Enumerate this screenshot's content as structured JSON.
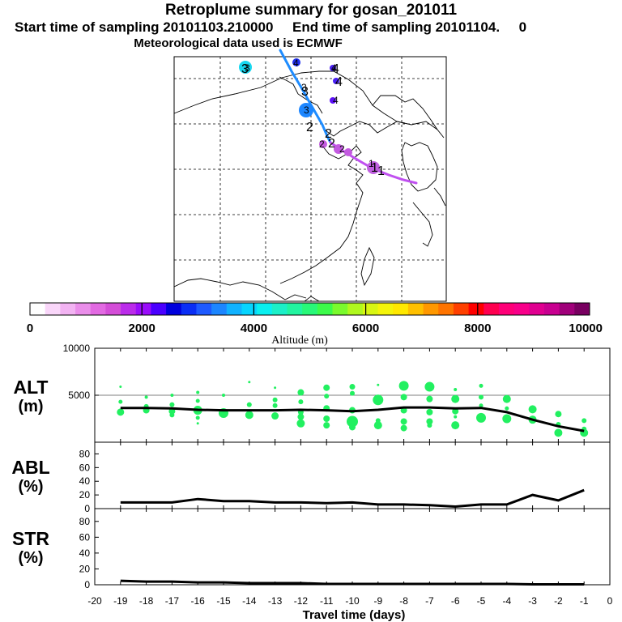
{
  "header": {
    "title": "Retroplume summary for gosan_201011",
    "sampling": "Start time of sampling 20101103.210000     End time of sampling 20101104.     0",
    "met": "Meteorological data used is ECMWF"
  },
  "map": {
    "trajectory_labels": [
      "1",
      "1",
      "2",
      "2",
      "2",
      "3",
      "3",
      "4",
      "4"
    ],
    "cluster_labels": [
      "1",
      "2",
      "2",
      "3",
      "3",
      "3",
      "4",
      "4",
      "4"
    ]
  },
  "colorbar": {
    "colors": [
      "#ffffff",
      "#f9d6f9",
      "#f2b3f2",
      "#ea8eea",
      "#e26ae2",
      "#d44ed8",
      "#bb2cea",
      "#9a0dfb",
      "#4a00ff",
      "#0000dd",
      "#0a2ef5",
      "#1e5aff",
      "#1c86ff",
      "#11b2ff",
      "#06d5ff",
      "#0af0f0",
      "#1cf0c8",
      "#22f4a0",
      "#28f878",
      "#3cfb4a",
      "#7afa2d",
      "#b0f81e",
      "#d8f612",
      "#f4f40a",
      "#ffe800",
      "#ffc000",
      "#ff9800",
      "#ff7400",
      "#ff4000",
      "#ff0000",
      "#ff0050",
      "#ff0078",
      "#f8008a",
      "#e00090",
      "#c80090",
      "#a0007a",
      "#780060"
    ],
    "ticks": [
      "0",
      "2000",
      "4000",
      "6000",
      "8000",
      "10000"
    ],
    "label": "Altitude (m)"
  },
  "chart_data": [
    {
      "type": "scatter",
      "name": "ALT",
      "ylabel": [
        "ALT",
        "(m)"
      ],
      "ylim": [
        0,
        10000
      ],
      "yticks": [
        "5000",
        "10000"
      ],
      "mean_line": {
        "x": [
          -19,
          -18,
          -17,
          -16,
          -15,
          -14,
          -13,
          -12,
          -11,
          -10,
          -9,
          -8,
          -7,
          -6,
          -5,
          -4,
          -3,
          -2,
          -1
        ],
        "y": [
          3650,
          3650,
          3600,
          3450,
          3400,
          3400,
          3400,
          3450,
          3400,
          3300,
          3450,
          3700,
          3700,
          3600,
          3650,
          3200,
          2400,
          1700,
          1200
        ]
      },
      "points": [
        {
          "x": -19,
          "y": 5900,
          "s": 1.5
        },
        {
          "x": -19,
          "y": 4300,
          "s": 2.5
        },
        {
          "x": -19,
          "y": 3200,
          "s": 4.5
        },
        {
          "x": -18,
          "y": 4800,
          "s": 2
        },
        {
          "x": -18,
          "y": 3800,
          "s": 3
        },
        {
          "x": -18,
          "y": 3400,
          "s": 4
        },
        {
          "x": -17,
          "y": 5000,
          "s": 2
        },
        {
          "x": -17,
          "y": 4000,
          "s": 3
        },
        {
          "x": -17,
          "y": 3300,
          "s": 4
        },
        {
          "x": -17,
          "y": 2900,
          "s": 3
        },
        {
          "x": -16,
          "y": 5300,
          "s": 2
        },
        {
          "x": -16,
          "y": 4400,
          "s": 2.5
        },
        {
          "x": -16,
          "y": 3400,
          "s": 5.5
        },
        {
          "x": -16,
          "y": 2600,
          "s": 2.5
        },
        {
          "x": -16,
          "y": 2000,
          "s": 1.5
        },
        {
          "x": -15,
          "y": 5000,
          "s": 2
        },
        {
          "x": -15,
          "y": 3100,
          "s": 6
        },
        {
          "x": -14,
          "y": 6400,
          "s": 1.5
        },
        {
          "x": -14,
          "y": 4000,
          "s": 3
        },
        {
          "x": -14,
          "y": 2900,
          "s": 5
        },
        {
          "x": -13,
          "y": 5800,
          "s": 1.5
        },
        {
          "x": -13,
          "y": 4500,
          "s": 3
        },
        {
          "x": -13,
          "y": 3900,
          "s": 3
        },
        {
          "x": -13,
          "y": 2800,
          "s": 4.5
        },
        {
          "x": -12,
          "y": 5300,
          "s": 4
        },
        {
          "x": -12,
          "y": 4300,
          "s": 3
        },
        {
          "x": -12,
          "y": 3200,
          "s": 3.5
        },
        {
          "x": -12,
          "y": 2700,
          "s": 4
        },
        {
          "x": -12,
          "y": 2000,
          "s": 5
        },
        {
          "x": -11,
          "y": 5800,
          "s": 4
        },
        {
          "x": -11,
          "y": 4900,
          "s": 3
        },
        {
          "x": -11,
          "y": 3600,
          "s": 4
        },
        {
          "x": -11,
          "y": 2500,
          "s": 4
        },
        {
          "x": -11,
          "y": 1800,
          "s": 4
        },
        {
          "x": -10,
          "y": 5900,
          "s": 3.5
        },
        {
          "x": -10,
          "y": 5200,
          "s": 3
        },
        {
          "x": -10,
          "y": 3400,
          "s": 4
        },
        {
          "x": -10,
          "y": 2200,
          "s": 7
        },
        {
          "x": -10,
          "y": 1600,
          "s": 4
        },
        {
          "x": -9,
          "y": 6100,
          "s": 1.5
        },
        {
          "x": -9,
          "y": 4500,
          "s": 6.5
        },
        {
          "x": -9,
          "y": 2300,
          "s": 3
        },
        {
          "x": -9,
          "y": 1800,
          "s": 5
        },
        {
          "x": -8,
          "y": 6000,
          "s": 6
        },
        {
          "x": -8,
          "y": 4800,
          "s": 4
        },
        {
          "x": -8,
          "y": 3400,
          "s": 4
        },
        {
          "x": -8,
          "y": 2200,
          "s": 4
        },
        {
          "x": -8,
          "y": 1500,
          "s": 4
        },
        {
          "x": -7,
          "y": 5900,
          "s": 6
        },
        {
          "x": -7,
          "y": 4600,
          "s": 4
        },
        {
          "x": -7,
          "y": 3200,
          "s": 4
        },
        {
          "x": -7,
          "y": 2200,
          "s": 4
        },
        {
          "x": -7,
          "y": 1800,
          "s": 3
        },
        {
          "x": -6,
          "y": 5600,
          "s": 2
        },
        {
          "x": -6,
          "y": 4600,
          "s": 5
        },
        {
          "x": -6,
          "y": 3300,
          "s": 4
        },
        {
          "x": -6,
          "y": 2700,
          "s": 2
        },
        {
          "x": -6,
          "y": 1800,
          "s": 5
        },
        {
          "x": -5,
          "y": 6000,
          "s": 2.5
        },
        {
          "x": -5,
          "y": 4800,
          "s": 3
        },
        {
          "x": -5,
          "y": 3900,
          "s": 2.5
        },
        {
          "x": -5,
          "y": 2600,
          "s": 6
        },
        {
          "x": -4,
          "y": 4600,
          "s": 5
        },
        {
          "x": -4,
          "y": 3600,
          "s": 2.5
        },
        {
          "x": -4,
          "y": 2500,
          "s": 5.5
        },
        {
          "x": -3,
          "y": 3500,
          "s": 5
        },
        {
          "x": -3,
          "y": 2400,
          "s": 5
        },
        {
          "x": -2,
          "y": 3000,
          "s": 4
        },
        {
          "x": -2,
          "y": 1900,
          "s": 3
        },
        {
          "x": -2,
          "y": 1000,
          "s": 5
        },
        {
          "x": -1,
          "y": 2300,
          "s": 3
        },
        {
          "x": -1,
          "y": 1400,
          "s": 3
        },
        {
          "x": -1,
          "y": 1000,
          "s": 5
        }
      ]
    },
    {
      "type": "line",
      "name": "ABL",
      "ylabel": [
        "ABL",
        "(%)"
      ],
      "ylim": [
        0,
        90
      ],
      "yticks": [
        "0",
        "20",
        "40",
        "60",
        "80"
      ],
      "x": [
        -19,
        -18,
        -17,
        -16,
        -15,
        -14,
        -13,
        -12,
        -11,
        -10,
        -9,
        -8,
        -7,
        -6,
        -5,
        -4,
        -3,
        -2,
        -1
      ],
      "y": [
        9,
        9,
        9,
        14,
        11,
        11,
        9,
        9,
        8,
        9,
        6,
        6,
        5,
        3,
        6,
        6,
        20,
        12,
        27
      ]
    },
    {
      "type": "line",
      "name": "STR",
      "ylabel": [
        "STR",
        "(%)"
      ],
      "ylim": [
        0,
        90
      ],
      "yticks": [
        "0",
        "20",
        "40",
        "60",
        "80"
      ],
      "x": [
        -19,
        -18,
        -17,
        -16,
        -15,
        -14,
        -13,
        -12,
        -11,
        -10,
        -9,
        -8,
        -7,
        -6,
        -5,
        -4,
        -3,
        -2,
        -1
      ],
      "y": [
        5,
        4,
        4,
        3,
        3,
        2,
        2,
        2,
        1,
        1,
        1,
        1,
        1,
        1,
        1,
        1,
        0.5,
        0.5,
        0.5
      ]
    }
  ],
  "xaxis": {
    "label": "Travel time (days)",
    "xlim": [
      -20,
      0
    ],
    "ticks": [
      "-20",
      "-19",
      "-18",
      "-17",
      "-16",
      "-15",
      "-14",
      "-13",
      "-12",
      "-11",
      "-10",
      "-9",
      "-8",
      "-7",
      "-6",
      "-5",
      "-4",
      "-3",
      "-2",
      "-1",
      "0"
    ]
  }
}
